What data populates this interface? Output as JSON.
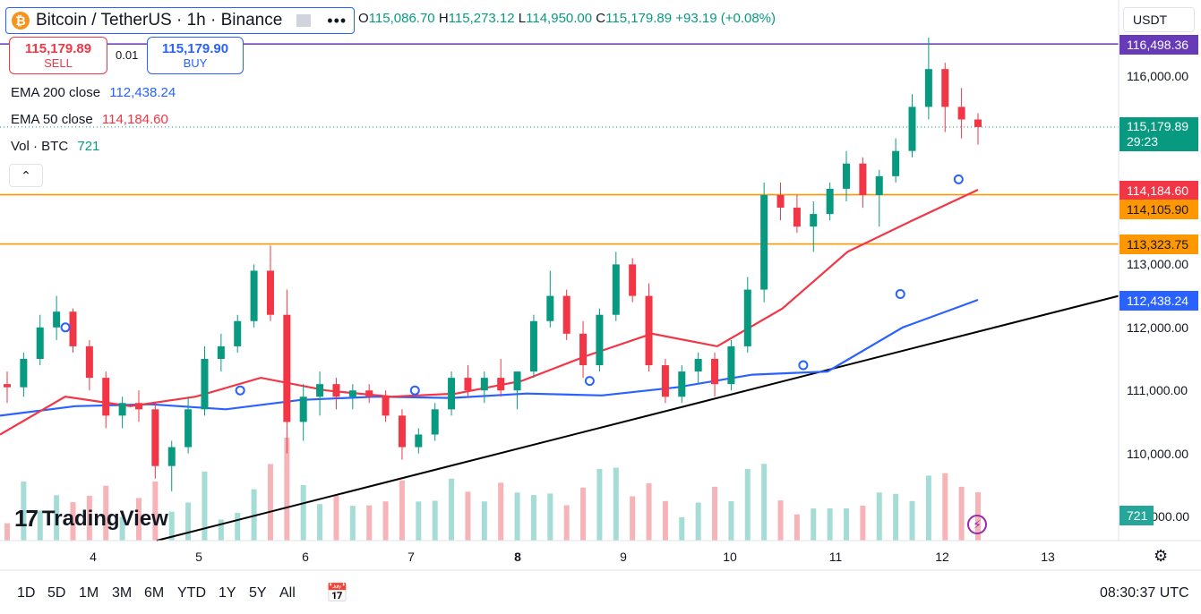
{
  "header": {
    "symbol_title": "Bitcoin / TetherUS · 1h · Binance",
    "coin_icon": "bitcoin-icon",
    "open_key": "O",
    "open": "115,086.70",
    "high_key": "H",
    "high": "115,273.12",
    "low_key": "L",
    "low": "114,950.00",
    "close_key": "C",
    "close": "115,179.89",
    "change": "+93.19 (+0.08%)"
  },
  "trade": {
    "sell_price": "115,179.89",
    "sell_label": "SELL",
    "buy_price": "115,179.90",
    "buy_label": "BUY",
    "spread": "0.01"
  },
  "legend": {
    "ema200_label": "EMA 200 close",
    "ema200_value": "112,438.24",
    "ema50_label": "EMA 50 close",
    "ema50_value": "114,184.60",
    "vol_label": "Vol · BTC",
    "vol_value": "721"
  },
  "currency": "USDT",
  "price_axis": {
    "labels": [
      "116,000.00",
      "113,000.00",
      "112,000.00",
      "111,000.00",
      "110,000.00",
      "109,000.00"
    ],
    "tags": {
      "level_top": "116,498.36",
      "current": "115,179.89",
      "countdown": "29:23",
      "ema50": "114,184.60",
      "level_1": "114,105.90",
      "level_2": "113,323.75",
      "ema200": "112,438.24",
      "volume": "721"
    }
  },
  "time_axis": {
    "labels": [
      "4",
      "5",
      "6",
      "7",
      "8",
      "9",
      "10",
      "11",
      "12",
      "13"
    ]
  },
  "timeframes": [
    "1D",
    "5D",
    "1M",
    "3M",
    "6M",
    "YTD",
    "1Y",
    "5Y",
    "All"
  ],
  "clock": "08:30:37 UTC",
  "branding": "TradingView",
  "colors": {
    "up": "#089981",
    "down": "#f23645",
    "ema50": "#f23645",
    "ema200": "#2962ff",
    "level": "#ff9800",
    "level_top": "#673ab7",
    "trendline": "#000000"
  },
  "chart_data": {
    "type": "candlestick",
    "y_unit": "USDT",
    "ylim": [
      109000,
      116800
    ],
    "x": [
      "4",
      "5",
      "6",
      "7",
      "8",
      "9",
      "10",
      "11",
      "12",
      "13"
    ],
    "horizontal_levels": [
      116498.36,
      114105.9,
      113323.75
    ],
    "trendline": [
      [
        109000,
        0.14
      ],
      [
        112500,
        1.0
      ]
    ],
    "ema200_close_path": [
      110600,
      110750,
      110780,
      110700,
      110850,
      110900,
      110880,
      110950,
      110920,
      111050,
      111250,
      111300,
      112000,
      112438
    ],
    "ema50_close_path": [
      110300,
      110900,
      110750,
      110900,
      111200,
      111000,
      110900,
      110950,
      111150,
      111550,
      111900,
      111700,
      112300,
      113200,
      113700,
      114185
    ],
    "candles": [
      [
        111100,
        111300,
        110800,
        111050
      ],
      [
        111050,
        111600,
        110900,
        111500
      ],
      [
        111500,
        112200,
        111400,
        112000
      ],
      [
        112000,
        112500,
        111800,
        112250
      ],
      [
        112250,
        112300,
        111600,
        111700
      ],
      [
        111700,
        111800,
        111000,
        111200
      ],
      [
        111200,
        111300,
        110400,
        110600
      ],
      [
        110600,
        110900,
        110400,
        110800
      ],
      [
        110800,
        111000,
        110500,
        110700
      ],
      [
        110700,
        110800,
        109600,
        109800
      ],
      [
        109800,
        110200,
        109400,
        110100
      ],
      [
        110100,
        110900,
        110000,
        110700
      ],
      [
        110700,
        111700,
        110600,
        111500
      ],
      [
        111500,
        111900,
        111300,
        111700
      ],
      [
        111700,
        112200,
        111600,
        112100
      ],
      [
        112100,
        113000,
        112000,
        112900
      ],
      [
        112900,
        113300,
        112100,
        112200
      ],
      [
        112200,
        112600,
        110000,
        110500
      ],
      [
        110500,
        111100,
        110200,
        110900
      ],
      [
        110900,
        111300,
        110600,
        111100
      ],
      [
        111100,
        111200,
        110700,
        110900
      ],
      [
        110900,
        111100,
        110700,
        111000
      ],
      [
        111000,
        111100,
        110800,
        110900
      ],
      [
        110900,
        111000,
        110500,
        110600
      ],
      [
        110600,
        110700,
        109900,
        110100
      ],
      [
        110100,
        110400,
        110000,
        110300
      ],
      [
        110300,
        110800,
        110200,
        110700
      ],
      [
        110700,
        111300,
        110600,
        111200
      ],
      [
        111200,
        111400,
        110900,
        111000
      ],
      [
        111000,
        111300,
        110800,
        111200
      ],
      [
        111200,
        111500,
        110900,
        111000
      ],
      [
        111000,
        111300,
        110700,
        111300
      ],
      [
        111300,
        112200,
        111200,
        112100
      ],
      [
        112100,
        112900,
        112000,
        112500
      ],
      [
        112500,
        112600,
        111800,
        111900
      ],
      [
        111900,
        112100,
        111200,
        111400
      ],
      [
        111400,
        112300,
        111300,
        112200
      ],
      [
        112200,
        113200,
        112100,
        113000
      ],
      [
        113000,
        113100,
        112400,
        112500
      ],
      [
        112500,
        112700,
        111300,
        111400
      ],
      [
        111400,
        111500,
        110800,
        110900
      ],
      [
        110900,
        111400,
        110800,
        111300
      ],
      [
        111300,
        111600,
        111100,
        111500
      ],
      [
        111500,
        111600,
        110900,
        111100
      ],
      [
        111100,
        111800,
        111000,
        111700
      ],
      [
        111700,
        112800,
        111600,
        112600
      ],
      [
        112600,
        114300,
        112400,
        114100
      ],
      [
        114100,
        114300,
        113700,
        113900
      ],
      [
        113900,
        114100,
        113500,
        113600
      ],
      [
        113600,
        114000,
        113200,
        113800
      ],
      [
        113800,
        114300,
        113700,
        114200
      ],
      [
        114200,
        114800,
        114000,
        114600
      ],
      [
        114600,
        114700,
        113900,
        114100
      ],
      [
        114100,
        114500,
        113600,
        114400
      ],
      [
        114400,
        115000,
        114300,
        114800
      ],
      [
        114800,
        115700,
        114700,
        115500
      ],
      [
        115500,
        116600,
        115300,
        116100
      ],
      [
        116100,
        116200,
        115100,
        115500
      ],
      [
        115500,
        115800,
        115000,
        115300
      ],
      [
        115300,
        115400,
        114900,
        115180
      ]
    ],
    "volume_max": 1450
  }
}
